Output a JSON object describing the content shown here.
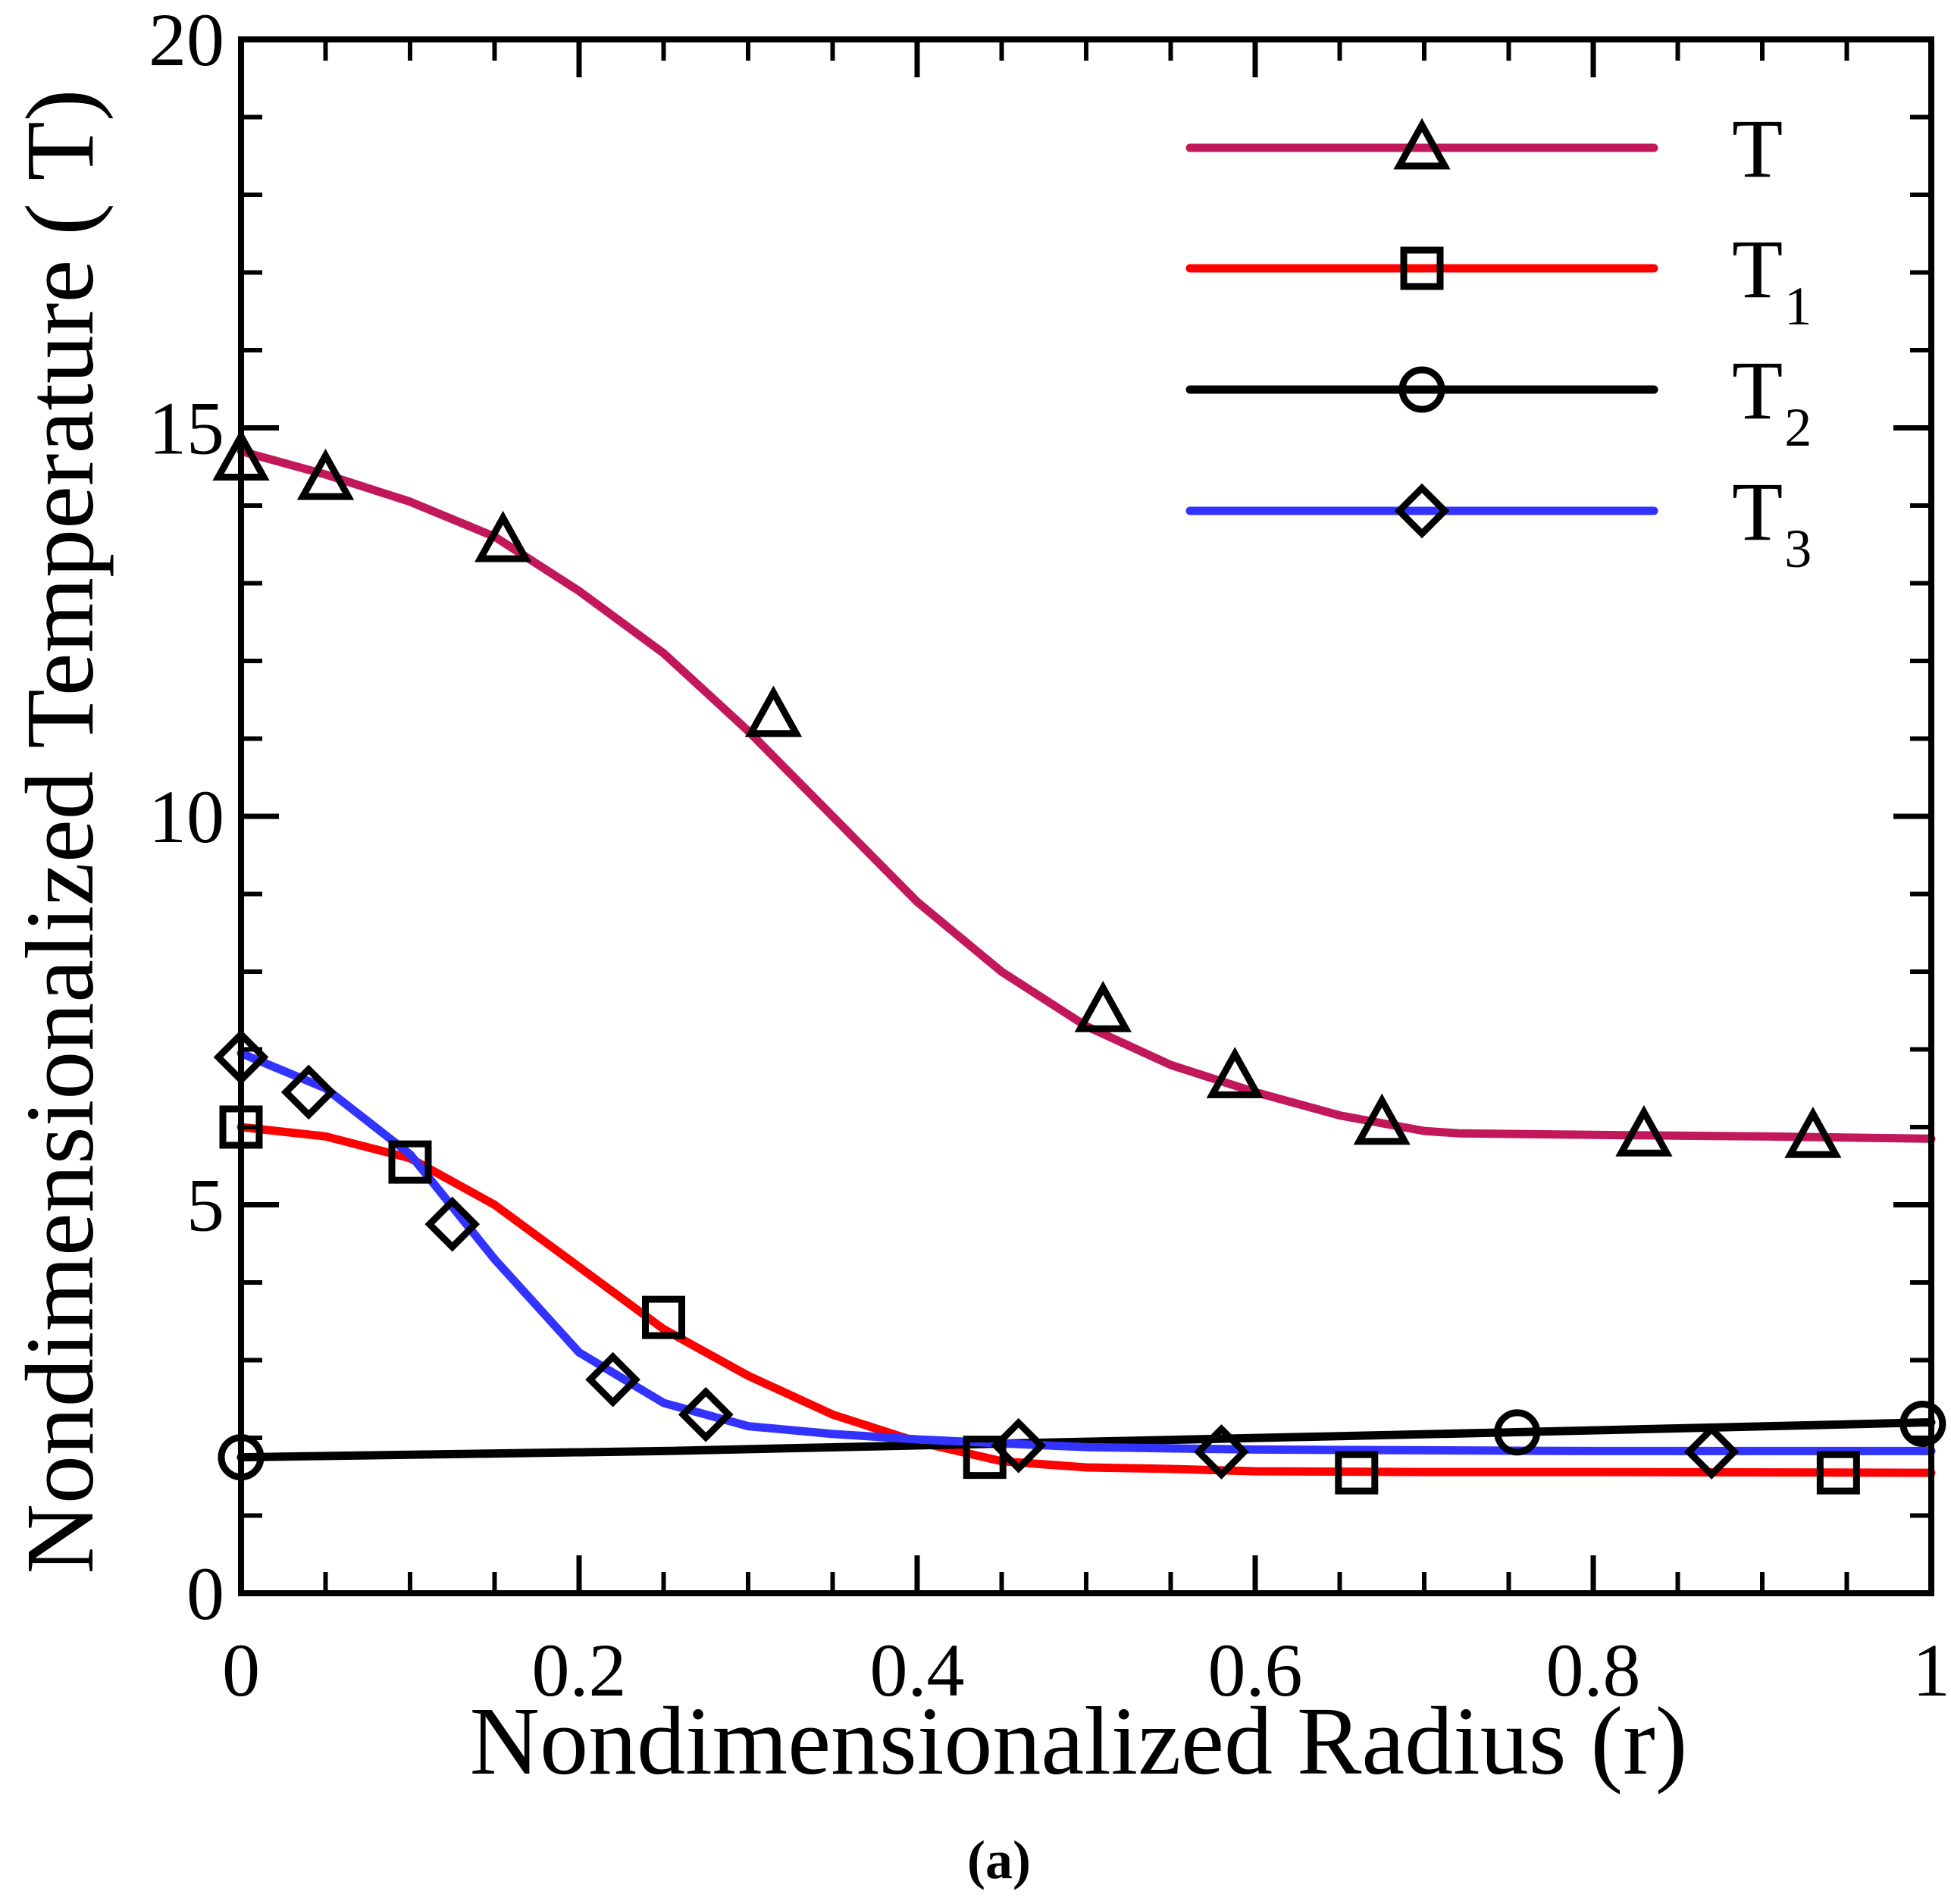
{
  "chart_data": {
    "type": "line",
    "xlabel": "Nondimensionalized Radius (r)",
    "ylabel": "Nondimensionalized Temperature ( T)",
    "xlim": [
      0,
      1
    ],
    "ylim": [
      0,
      20
    ],
    "xticks": [
      0,
      0.2,
      0.4,
      0.6,
      0.8,
      1
    ],
    "xtick_labels": [
      "0",
      "0.2",
      "0.4",
      "0.6",
      "0.8",
      "1"
    ],
    "yticks": [
      0,
      5,
      10,
      15,
      20
    ],
    "ytick_labels": [
      "0",
      "5",
      "10",
      "15",
      "20"
    ],
    "x_minor_step": 0.05,
    "y_minor_step": 1,
    "legend_position": "top-right",
    "caption": "(a)",
    "series": [
      {
        "name": "T",
        "legend_main": "T",
        "legend_sub": "",
        "color": "#c2185b",
        "marker": "triangle",
        "x": [
          0,
          0.05,
          0.1,
          0.15,
          0.2,
          0.25,
          0.275,
          0.3,
          0.35,
          0.4,
          0.45,
          0.5,
          0.55,
          0.6,
          0.65,
          0.7,
          0.72,
          0.8,
          0.9,
          1.0
        ],
        "y": [
          14.7,
          14.4,
          14.05,
          13.6,
          12.9,
          12.1,
          11.6,
          11.1,
          10.0,
          8.9,
          8.0,
          7.3,
          6.8,
          6.45,
          6.15,
          5.95,
          5.92,
          5.9,
          5.88,
          5.85
        ],
        "marker_x": [
          0,
          0.05,
          0.155,
          0.315,
          0.51,
          0.588,
          0.675,
          0.83,
          0.93
        ],
        "marker_y": [
          14.6,
          14.35,
          13.55,
          11.3,
          7.5,
          6.65,
          6.05,
          5.9,
          5.88
        ]
      },
      {
        "name": "T1",
        "legend_main": "T",
        "legend_sub": "1",
        "color": "#ff0000",
        "marker": "square",
        "x": [
          0,
          0.05,
          0.1,
          0.15,
          0.2,
          0.25,
          0.3,
          0.35,
          0.4,
          0.45,
          0.5,
          0.55,
          0.6,
          0.7,
          0.8,
          1.0
        ],
        "y": [
          6.0,
          5.88,
          5.6,
          5.0,
          4.2,
          3.4,
          2.8,
          2.3,
          1.95,
          1.7,
          1.62,
          1.6,
          1.57,
          1.56,
          1.56,
          1.55
        ],
        "marker_x": [
          0,
          0.1,
          0.25,
          0.44,
          0.66,
          0.945
        ],
        "marker_y": [
          6.0,
          5.55,
          3.55,
          1.75,
          1.55,
          1.55
        ]
      },
      {
        "name": "T2",
        "legend_main": "T",
        "legend_sub": "2",
        "color": "#000000",
        "marker": "circle",
        "x": [
          0,
          0.25,
          0.5,
          0.75,
          1.0
        ],
        "y": [
          1.75,
          1.83,
          1.95,
          2.07,
          2.2
        ],
        "marker_x": [
          0,
          0.755,
          0.995
        ],
        "marker_y": [
          1.75,
          2.07,
          2.18
        ]
      },
      {
        "name": "T3",
        "legend_main": "T",
        "legend_sub": "3",
        "color": "#3333ff",
        "marker": "diamond",
        "x": [
          0,
          0.05,
          0.1,
          0.15,
          0.2,
          0.25,
          0.3,
          0.35,
          0.4,
          0.45,
          0.5,
          0.6,
          0.7,
          0.8,
          1.0
        ],
        "y": [
          6.95,
          6.5,
          5.65,
          4.3,
          3.1,
          2.45,
          2.15,
          2.05,
          1.98,
          1.93,
          1.88,
          1.85,
          1.84,
          1.83,
          1.83
        ],
        "marker_x": [
          0,
          0.04,
          0.125,
          0.22,
          0.275,
          0.46,
          0.58,
          0.87
        ],
        "marker_y": [
          6.9,
          6.45,
          4.75,
          2.75,
          2.3,
          1.9,
          1.82,
          1.82
        ]
      }
    ]
  }
}
